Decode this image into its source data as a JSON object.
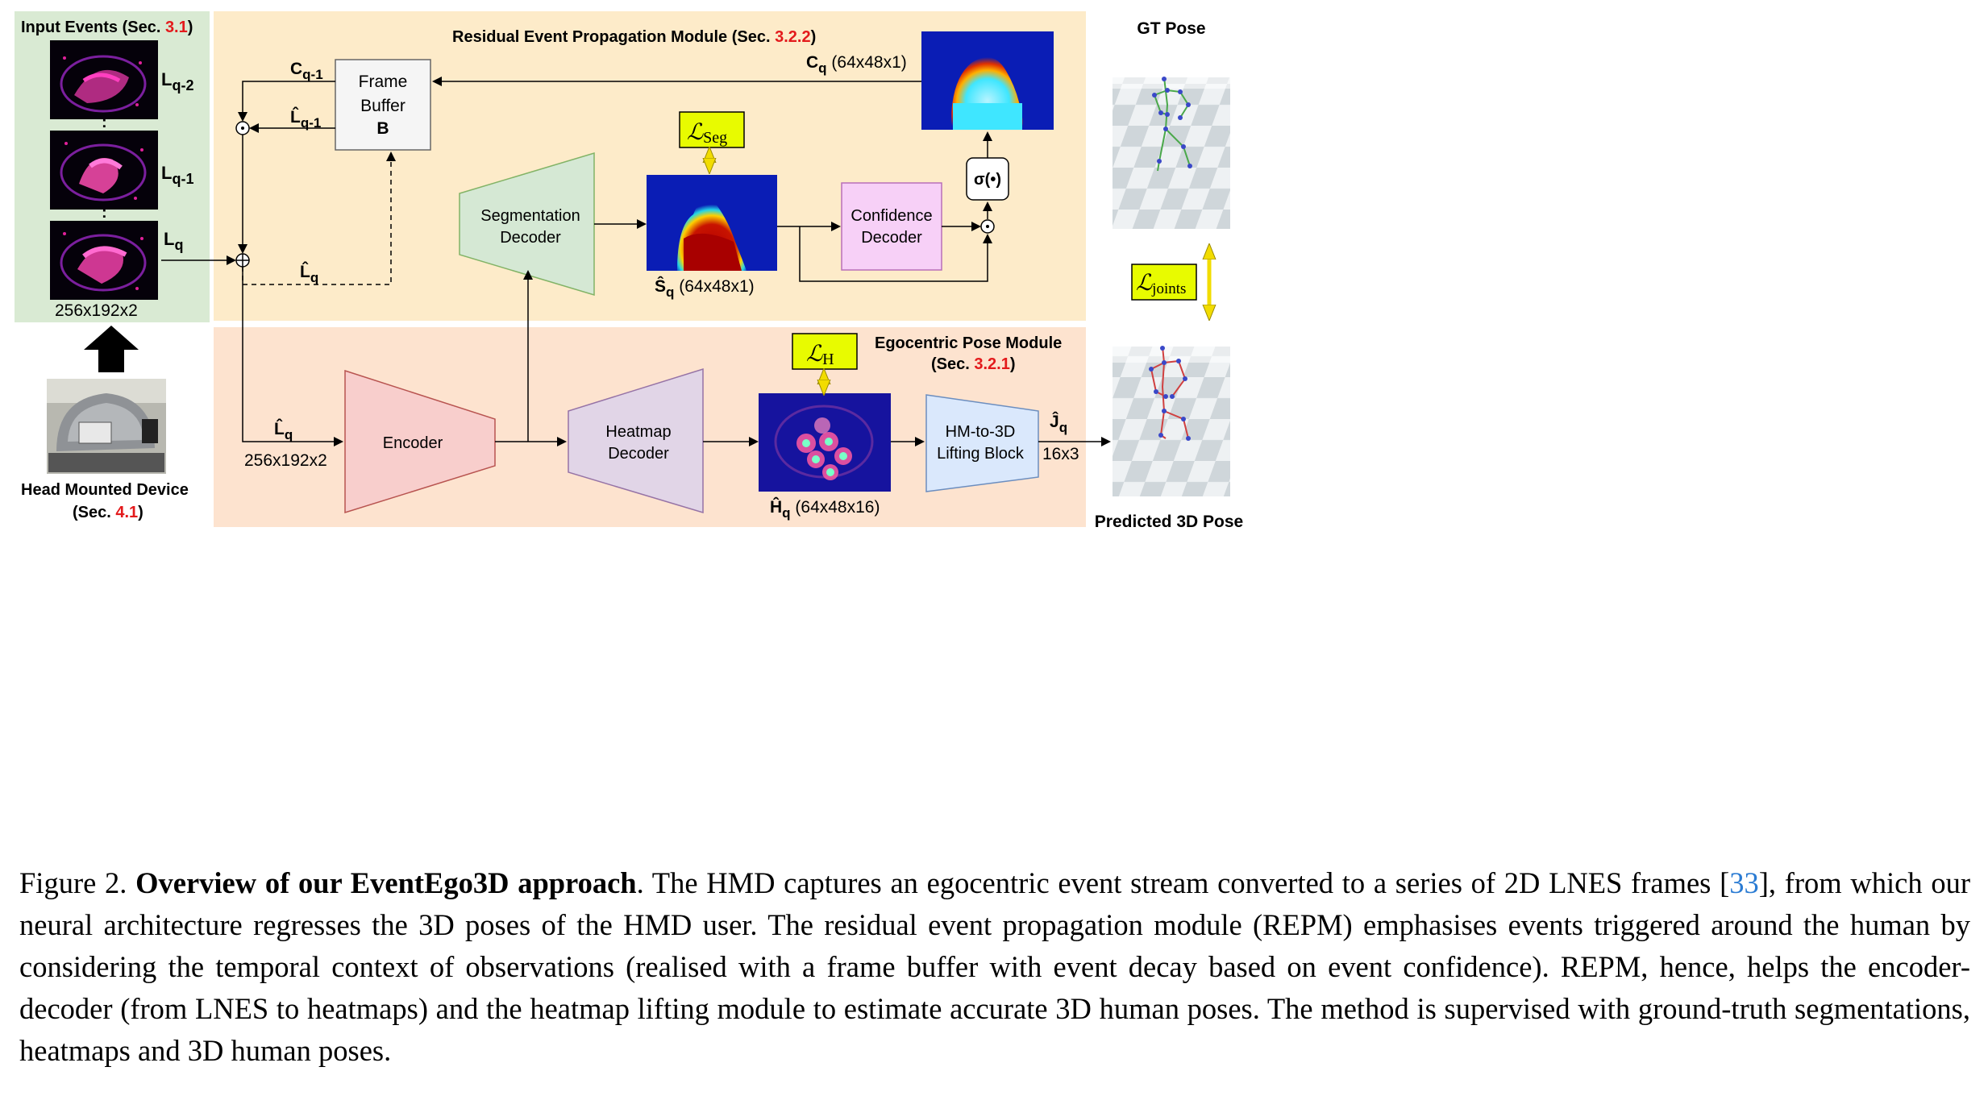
{
  "diagram": {
    "input_events_title": "Input Events (Sec. ",
    "input_events_sec": "3.1",
    "input_events_close": ")",
    "frame_labels": [
      "L",
      "L",
      "L"
    ],
    "frame_subs": [
      "q-2",
      "q-1",
      "q"
    ],
    "input_size": "256x192x2",
    "hmd_title": "Head Mounted Device",
    "hmd_sec_open": "(Sec. ",
    "hmd_sec": "4.1",
    "hmd_sec_close": ")",
    "repm_title": "Residual Event Propagation Module (Sec. ",
    "repm_sec": "3.2.2",
    "repm_close": ")",
    "epm_title_1": "Egocentric Pose Module",
    "epm_title_2_open": "(Sec. ",
    "epm_sec": "3.2.1",
    "epm_title_2_close": ")",
    "frame_buffer": [
      "Frame",
      "Buffer",
      "B"
    ],
    "c_prev": "C",
    "c_prev_sub": "q-1",
    "lhat_prev": "L̂",
    "lhat_prev_sub": "q-1",
    "lhat": "L̂",
    "lhat_sub": "q",
    "cq": "C",
    "cq_sub": "q",
    "cq_size": " (64x48x1)",
    "seg_decoder": [
      "Segmentation",
      "Decoder"
    ],
    "conf_decoder": [
      "Confidence",
      "Decoder"
    ],
    "sigma": "σ(•)",
    "shat": "Ŝ",
    "shat_sub": "q",
    "shat_size": " (64x48x1)",
    "loss_seg": "Seg",
    "loss_h": "H",
    "loss_joints": "joints",
    "encoder": "Encoder",
    "heatmap_decoder": [
      "Heatmap",
      "Decoder"
    ],
    "lifting": [
      "HM-to-3D",
      "Lifting Block"
    ],
    "enc_input": "L̂",
    "enc_input_sub": "q",
    "enc_input_size": "256x192x2",
    "hhat": "Ĥ",
    "hhat_sub": "q",
    "hhat_size": " (64x48x16)",
    "jhat": "Ĵ",
    "jhat_sub": "q",
    "joints_size": "16x3",
    "gt_pose": "GT Pose",
    "pred_pose": "Predicted 3D Pose"
  },
  "caption": {
    "lead": "Figure 2. ",
    "bold": "Overview of our EventEgo3D approach",
    "text1": ". The HMD captures an egocentric event stream converted to a series of 2D LNES frames [",
    "ref": "33",
    "text2": "], from which our neural architecture regresses the 3D poses of the HMD user. The residual event propagation module (REPM) emphasises events triggered around the human by considering the temporal context of observations (realised with a frame buffer with event decay based on event confidence). REPM, hence, helps the encoder-decoder (from LNES to heatmaps) and the heatmap lifting module to estimate accurate 3D human poses. The method is supervised with ground-truth segmentations, heatmaps and 3D human poses."
  },
  "colors": {
    "input_panel": "#d9ead3",
    "repm_panel": "#fdebc9",
    "epm_panel": "#fde3cf",
    "loss_box": "#e8fb00",
    "sec_red": "#e31a1c",
    "seg_decoder": "#d5e8d4",
    "conf_decoder": "#f7d0f7",
    "encoder": "#f8cecc",
    "heatmap_decoder": "#e1d5e7",
    "lifting": "#dae8fc"
  }
}
